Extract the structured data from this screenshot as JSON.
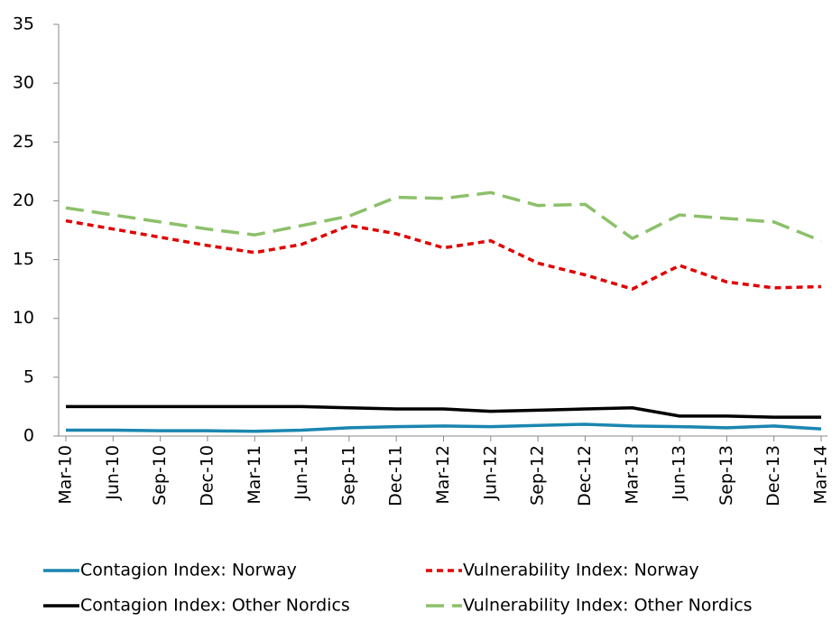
{
  "chart_data": {
    "type": "line",
    "categories": [
      "Mar-10",
      "Jun-10",
      "Sep-10",
      "Dec-10",
      "Mar-11",
      "Jun-11",
      "Sep-11",
      "Dec-11",
      "Mar-12",
      "Jun-12",
      "Sep-12",
      "Dec-12",
      "Mar-13",
      "Jun-13",
      "Sep-13",
      "Dec-13",
      "Mar-14"
    ],
    "series": [
      {
        "name": "Contagion Index: Norway",
        "color": "#1a86b0",
        "line_style": "solid",
        "values": [
          0.5,
          0.5,
          0.45,
          0.45,
          0.4,
          0.5,
          0.7,
          0.8,
          0.85,
          0.8,
          0.9,
          1.0,
          0.85,
          0.8,
          0.7,
          0.85,
          0.6
        ]
      },
      {
        "name": "Vulnerability Index: Norway",
        "color": "#e00000",
        "line_style": "dash",
        "values": [
          18.3,
          17.6,
          16.9,
          16.2,
          15.6,
          16.3,
          17.9,
          17.2,
          16.0,
          16.6,
          14.7,
          13.7,
          12.5,
          14.5,
          13.1,
          12.6,
          12.7
        ]
      },
      {
        "name": "Contagion Index: Other Nordics",
        "color": "#000000",
        "line_style": "solid",
        "values": [
          2.5,
          2.5,
          2.5,
          2.5,
          2.5,
          2.5,
          2.4,
          2.3,
          2.3,
          2.1,
          2.2,
          2.3,
          2.4,
          1.7,
          1.7,
          1.6,
          1.6
        ]
      },
      {
        "name": "Vulnerability Index: Other Nordics",
        "color": "#8cc06a",
        "line_style": "longdash",
        "values": [
          19.4,
          18.8,
          18.2,
          17.6,
          17.1,
          17.9,
          18.7,
          20.3,
          20.2,
          20.7,
          19.6,
          19.7,
          16.8,
          18.8,
          18.5,
          18.2,
          16.6
        ]
      }
    ],
    "ylim": [
      0,
      35
    ],
    "yticks": [
      0,
      5,
      10,
      15,
      20,
      25,
      30,
      35
    ],
    "grid": false,
    "legend": "bottom"
  }
}
